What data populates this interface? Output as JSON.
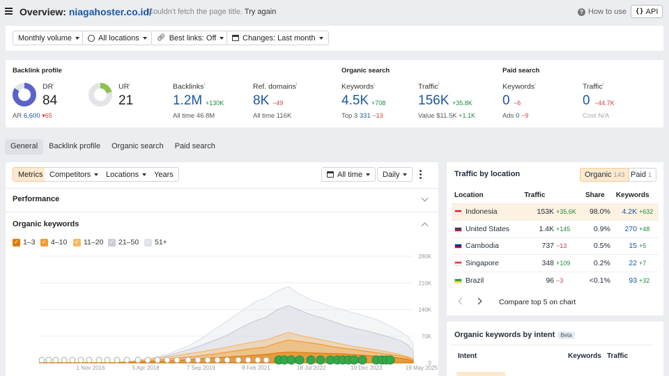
{
  "header": {
    "title_prefix": "Overview:",
    "domain": "niagahoster.co.id/",
    "fetch_msg": "Couldn't fetch the page title.",
    "retry": "Try again",
    "how_to_use": "How to use",
    "api": "API"
  },
  "filters": {
    "volume": "Monthly volume",
    "locations": "All locations",
    "best_links": "Best links: Off",
    "changes": "Changes: Last month"
  },
  "stats": {
    "backlink_profile": "Backlink profile",
    "dr_label": "DR",
    "dr_value": "84",
    "ar_label": "AR",
    "ar_value": "6,600",
    "ar_change": "▾65",
    "ur_label": "UR",
    "ur_value": "21",
    "backlinks_label": "Backlinks",
    "backlinks_value": "1.2M",
    "backlinks_change": "+130K",
    "backlinks_all_time_label": "All time",
    "backlinks_all_time": "46.8M",
    "refdomains_label": "Ref. domains",
    "refdomains_value": "8K",
    "refdomains_change": "−49",
    "refdomains_all_time_label": "All time",
    "refdomains_all_time": "116K",
    "organic_search": "Organic search",
    "org_kw_label": "Keywords",
    "org_kw_value": "4.5K",
    "org_kw_change": "+708",
    "top3_label": "Top 3",
    "top3_value": "331",
    "top3_change": "−13",
    "org_traffic_label": "Traffic",
    "org_traffic_value": "156K",
    "org_traffic_change": "+35.8K",
    "value_label": "Value",
    "value_value": "$11.5K",
    "value_change": "+1.1K",
    "paid_search": "Paid search",
    "paid_kw_label": "Keywords",
    "paid_kw_value": "0",
    "paid_kw_change": "−6",
    "ads_label": "Ads",
    "ads_value": "0",
    "ads_change": "−9",
    "paid_traffic_label": "Traffic",
    "paid_traffic_value": "0",
    "paid_traffic_change": "−44.7K",
    "cost_label": "Cost",
    "cost_value": "N/A",
    "dr_ring_fraction": 0.84,
    "ur_ring_fraction": 0.21
  },
  "tabs": [
    "General",
    "Backlink profile",
    "Organic search",
    "Paid search"
  ],
  "chart_tools": {
    "metrics": "Metrics",
    "competitors": "Competitors",
    "locations": "Locations",
    "years": "Years",
    "all_time": "All time",
    "daily": "Daily"
  },
  "sections": {
    "performance": "Performance",
    "organic_keywords": "Organic keywords"
  },
  "legend": [
    {
      "label": "1–3",
      "color": "#e07b00",
      "checked": true
    },
    {
      "label": "4–10",
      "color": "#f29a2e",
      "checked": true
    },
    {
      "label": "11–20",
      "color": "#f6b864",
      "checked": true
    },
    {
      "label": "21–50",
      "color": "#c9ced6",
      "checked": true
    },
    {
      "label": "51+",
      "color": "#dfe2e7",
      "checked": true
    }
  ],
  "chart_data": {
    "type": "area",
    "x_tick_labels": [
      "1 Nov 2016",
      "5 Apr 2018",
      "7 Sep 2019",
      "8 Feb 2021",
      "18 Jul 2022",
      "19 Dec 2023",
      "19 May 2025"
    ],
    "y_tick_labels": [
      "280K",
      "210K",
      "140K",
      "70K",
      "0"
    ],
    "ylim": [
      0,
      280000
    ],
    "x": [
      2015.3,
      2015.8,
      2016.3,
      2016.8,
      2017.3,
      2017.8,
      2018.3,
      2018.8,
      2019.3,
      2019.6,
      2019.9,
      2020.2,
      2020.5,
      2020.8,
      2021.1,
      2021.4,
      2021.7,
      2022.0,
      2022.3,
      2022.6,
      2022.9,
      2023.2,
      2023.5,
      2023.8,
      2024.1,
      2024.4,
      2024.7,
      2025.0,
      2025.2,
      2025.35
    ],
    "series": [
      {
        "name": "1–3",
        "values": [
          0,
          0,
          0,
          0,
          0,
          1000,
          3000,
          5000,
          8000,
          10000,
          12000,
          14000,
          16000,
          18000,
          20000,
          22000,
          26000,
          28000,
          27000,
          26000,
          25000,
          24000,
          23000,
          21000,
          19000,
          17000,
          15000,
          12000,
          9000,
          4000
        ]
      },
      {
        "name": "4–10",
        "values": [
          0,
          0,
          0,
          0,
          0,
          2000,
          6000,
          10000,
          15000,
          18000,
          22000,
          26000,
          30000,
          34000,
          38000,
          42000,
          52000,
          60000,
          56000,
          52000,
          48000,
          42000,
          38000,
          34000,
          30000,
          26000,
          22000,
          18000,
          14000,
          8000
        ]
      },
      {
        "name": "11–20",
        "values": [
          0,
          0,
          0,
          0,
          0,
          3000,
          9000,
          16000,
          24000,
          28000,
          33000,
          38000,
          44000,
          50000,
          55000,
          60000,
          70000,
          80000,
          72000,
          66000,
          60000,
          54000,
          48000,
          42000,
          38000,
          33000,
          28000,
          22000,
          16000,
          10000
        ]
      },
      {
        "name": "21–50",
        "values": [
          0,
          0,
          0,
          0,
          1000,
          4000,
          10000,
          20000,
          34000,
          44000,
          55000,
          66000,
          80000,
          96000,
          110000,
          120000,
          140000,
          150000,
          138000,
          126000,
          118000,
          108000,
          98000,
          90000,
          84000,
          76000,
          68000,
          58000,
          48000,
          30000
        ]
      },
      {
        "name": "51+",
        "values": [
          0,
          0,
          0,
          0,
          1000,
          5000,
          12000,
          24000,
          44000,
          60000,
          80000,
          100000,
          120000,
          140000,
          160000,
          170000,
          190000,
          200000,
          180000,
          166000,
          156000,
          146000,
          138000,
          130000,
          122000,
          112000,
          98000,
          82000,
          70000,
          50000
        ]
      }
    ]
  },
  "traffic_by_location": {
    "title": "Traffic by location",
    "organic_label": "Organic",
    "organic_count": "143",
    "paid_label": "Paid",
    "paid_count": "1",
    "headers": [
      "Location",
      "Traffic",
      "Share",
      "Keywords"
    ],
    "rows": [
      {
        "name": "Indonesia",
        "traffic": "153K",
        "change": "+35.6K",
        "change_dir": "up",
        "share": "98.0%",
        "keywords": "4.2K",
        "kw_change": "+632",
        "kw_dir": "up",
        "flag": [
          "#e2231a",
          "#ffffff"
        ]
      },
      {
        "name": "United States",
        "traffic": "1.4K",
        "change": "+145",
        "change_dir": "up",
        "share": "0.9%",
        "keywords": "270",
        "kw_change": "+48",
        "kw_dir": "up",
        "flag": [
          "#3c3b6e",
          "#b22234"
        ]
      },
      {
        "name": "Cambodia",
        "traffic": "737",
        "change": "−13",
        "change_dir": "down",
        "share": "0.5%",
        "keywords": "15",
        "kw_change": "+5",
        "kw_dir": "up",
        "flag": [
          "#032ea1",
          "#e00025"
        ]
      },
      {
        "name": "Singapore",
        "traffic": "348",
        "change": "+109",
        "change_dir": "up",
        "share": "0.2%",
        "keywords": "22",
        "kw_change": "+7",
        "kw_dir": "up",
        "flag": [
          "#ef3340",
          "#ffffff"
        ]
      },
      {
        "name": "Brazil",
        "traffic": "96",
        "change": "−3",
        "change_dir": "down",
        "share": "<0.1%",
        "keywords": "93",
        "kw_change": "+32",
        "kw_dir": "up",
        "flag": [
          "#009c3b",
          "#ffdf00"
        ]
      }
    ],
    "compare": "Compare top 5 on chart"
  },
  "intent": {
    "title": "Organic keywords by intent",
    "beta": "Beta",
    "headers": [
      "Intent",
      "Keywords",
      "Traffic"
    ]
  },
  "colors": {
    "accent_blue": "#1a56a6",
    "up_green": "#1a8a3c",
    "down_red": "#d63a3a",
    "orange_active": "#fde9cf"
  }
}
